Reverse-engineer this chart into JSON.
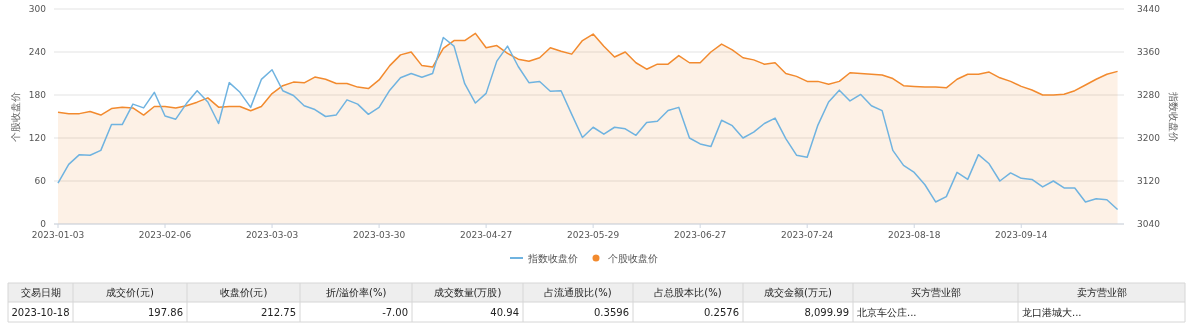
{
  "chart_data": [
    {
      "type": "line",
      "ylabel": "个股收盘价",
      "y2label": "指数收盘价",
      "categories": [
        "2023-01-03",
        null,
        null,
        null,
        null,
        null,
        null,
        null,
        null,
        null,
        "2023-02-06",
        null,
        null,
        null,
        null,
        null,
        null,
        null,
        null,
        null,
        "2023-03-03",
        null,
        null,
        null,
        null,
        null,
        null,
        null,
        null,
        null,
        "2023-03-30",
        null,
        null,
        null,
        null,
        null,
        null,
        null,
        null,
        null,
        "2023-04-27",
        null,
        null,
        null,
        null,
        null,
        null,
        null,
        null,
        null,
        "2023-05-29",
        null,
        null,
        null,
        null,
        null,
        null,
        null,
        null,
        null,
        "2023-06-27",
        null,
        null,
        null,
        null,
        null,
        null,
        null,
        null,
        null,
        "2023-07-24",
        null,
        null,
        null,
        null,
        null,
        null,
        null,
        null,
        null,
        "2023-08-18",
        null,
        null,
        null,
        null,
        null,
        null,
        null,
        null,
        null,
        "2023-09-14",
        null,
        null,
        null,
        null,
        null,
        null,
        null,
        null,
        null
      ],
      "series": [
        {
          "name": "指数收盘价",
          "type": "line",
          "axis": "y2",
          "color": "#6fb3e0",
          "values": [
            3116,
            3151,
            3169,
            3168,
            3177,
            3225,
            3225,
            3263,
            3256,
            3285,
            3241,
            3235,
            3264,
            3288,
            3267,
            3227,
            3303,
            3285,
            3257,
            3309,
            3327,
            3288,
            3279,
            3260,
            3253,
            3240,
            3243,
            3271,
            3263,
            3244,
            3257,
            3289,
            3312,
            3320,
            3313,
            3320,
            3387,
            3371,
            3301,
            3265,
            3283,
            3343,
            3371,
            3333,
            3303,
            3305,
            3287,
            3288,
            3244,
            3201,
            3220,
            3207,
            3220,
            3217,
            3205,
            3229,
            3231,
            3251,
            3257,
            3200,
            3189,
            3184,
            3233,
            3223,
            3200,
            3211,
            3227,
            3237,
            3199,
            3168,
            3164,
            3224,
            3267,
            3289,
            3269,
            3281,
            3260,
            3251,
            3177,
            3149,
            3136,
            3113,
            3081,
            3091,
            3136,
            3123,
            3169,
            3152,
            3120,
            3135,
            3125,
            3123,
            3109,
            3120,
            3107,
            3107,
            3081,
            3087,
            3085,
            3067
          ]
        },
        {
          "name": "个股收盘价",
          "type": "area",
          "color": "#f28a2e",
          "values": [
            156,
            154,
            154,
            157,
            152,
            161,
            163,
            162,
            152,
            164,
            164,
            162,
            165,
            170,
            176,
            163,
            164,
            164,
            158,
            164,
            182,
            193,
            198,
            197,
            205,
            202,
            196,
            196,
            191,
            189,
            201,
            221,
            236,
            240,
            221,
            219,
            245,
            256,
            256,
            266,
            246,
            249,
            238,
            230,
            227,
            232,
            246,
            241,
            237,
            256,
            265,
            248,
            233,
            240,
            225,
            216,
            223,
            223,
            235,
            225,
            225,
            240,
            251,
            243,
            232,
            229,
            223,
            225,
            210,
            206,
            199,
            199,
            195,
            199,
            211,
            210,
            209,
            208,
            203,
            193,
            192,
            191,
            191,
            190,
            202,
            209,
            209,
            212,
            204,
            199,
            192,
            187,
            180,
            180,
            181,
            186,
            194,
            202,
            209,
            213
          ]
        }
      ],
      "ylim": [
        0,
        300
      ],
      "yticks": [
        0,
        60,
        120,
        180,
        240,
        300
      ],
      "y2lim": [
        3040,
        3440
      ],
      "y2ticks": [
        3040,
        3120,
        3200,
        3280,
        3360,
        3440
      ],
      "grid": "y",
      "legend": "bottom"
    },
    {
      "type": "other",
      "categories": [
        "交易日期",
        "成交价(元)",
        "收盘价(元)",
        "折/溢价率(%)",
        "成交数量(万股)",
        "占流通股比(%)",
        "占总股本比(%)",
        "成交金额(万元)",
        "买方营业部",
        "卖方营业部"
      ],
      "cell_labels": [
        [
          "2023-10-18",
          "197.86",
          "212.75",
          "-7.00",
          "40.94",
          "0.3596",
          "0.2576",
          "8,099.99",
          "北京车公庄...",
          "龙口港城大..."
        ]
      ]
    }
  ]
}
